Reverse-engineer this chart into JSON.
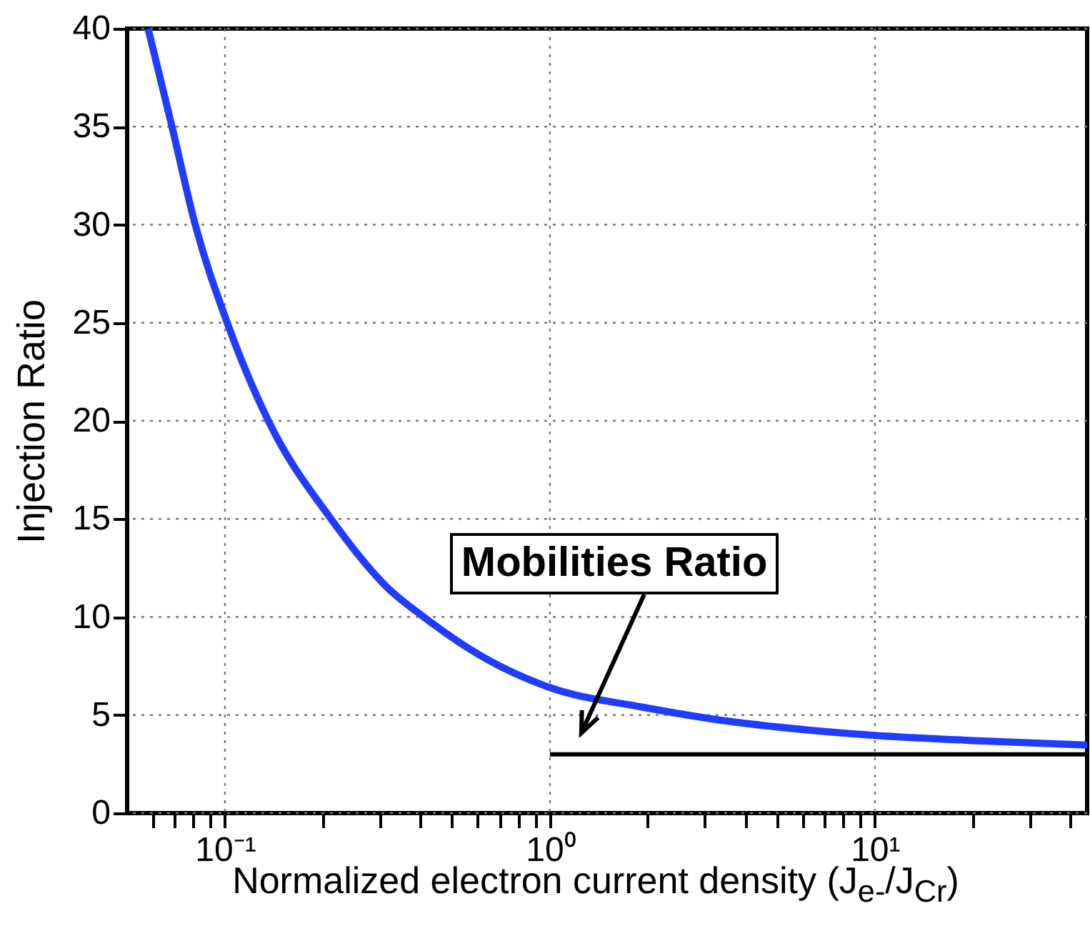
{
  "chart_data": {
    "type": "line",
    "xlabel": "Normalized electron current density (J$_{e-}$/J$_{Cr}$)",
    "ylabel": "Injection Ratio",
    "log": "x",
    "xlim": [
      0.05,
      45
    ],
    "ylim": [
      0,
      40
    ],
    "xticks": [
      {
        "value": 0.06,
        "label": null
      },
      {
        "value": 0.07,
        "label": null
      },
      {
        "value": 0.08,
        "label": null
      },
      {
        "value": 0.09,
        "label": null
      },
      {
        "value": 0.1,
        "label": "10⁻¹"
      },
      {
        "value": 0.2,
        "label": null
      },
      {
        "value": 0.3,
        "label": null
      },
      {
        "value": 0.4,
        "label": null
      },
      {
        "value": 0.5,
        "label": null
      },
      {
        "value": 0.6,
        "label": null
      },
      {
        "value": 0.7,
        "label": null
      },
      {
        "value": 0.8,
        "label": null
      },
      {
        "value": 0.9,
        "label": null
      },
      {
        "value": 1,
        "label": "10⁰"
      },
      {
        "value": 2,
        "label": null
      },
      {
        "value": 3,
        "label": null
      },
      {
        "value": 4,
        "label": null
      },
      {
        "value": 5,
        "label": null
      },
      {
        "value": 6,
        "label": null
      },
      {
        "value": 7,
        "label": null
      },
      {
        "value": 8,
        "label": null
      },
      {
        "value": 9,
        "label": null
      },
      {
        "value": 10,
        "label": "10¹"
      },
      {
        "value": 20,
        "label": null
      },
      {
        "value": 30,
        "label": null
      },
      {
        "value": 40,
        "label": null
      }
    ],
    "yticks": [
      0,
      5,
      10,
      15,
      20,
      25,
      30,
      35,
      40
    ],
    "grid": true,
    "series": [
      {
        "color": "#1f3cff",
        "x": [
          0.058,
          0.0687,
          0.081,
          0.1016,
          0.136,
          0.212,
          0.316,
          0.409,
          0.631,
          1,
          1.93,
          3.16,
          10,
          20,
          45
        ],
        "values": [
          40,
          35,
          30,
          25,
          20,
          15,
          11.5,
          10,
          7.9,
          6.4,
          5.4,
          4.8,
          3.96,
          3.7,
          3.47
        ]
      },
      {
        "color": "#000000",
        "x": [
          1,
          45
        ],
        "values": [
          3,
          3
        ]
      }
    ],
    "annotations": [
      "Mobilities Ratio"
    ]
  }
}
